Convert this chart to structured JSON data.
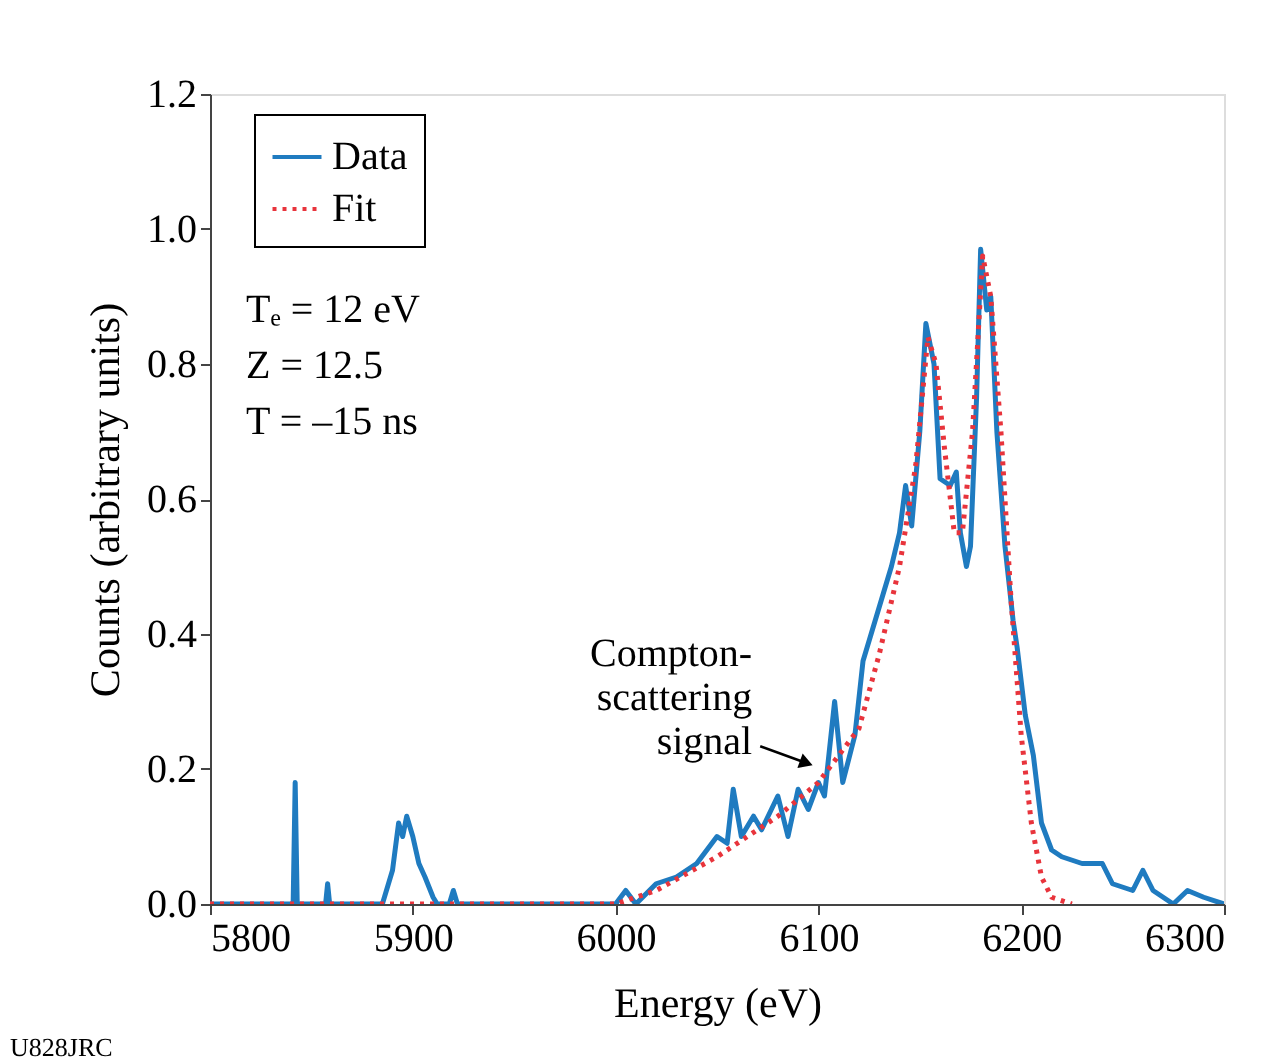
{
  "chart_data": {
    "type": "line",
    "xlabel": "Energy (eV)",
    "ylabel": "Counts (arbitrary units)",
    "xlim": [
      5800,
      6300
    ],
    "xticks": [
      5800,
      5900,
      6000,
      6100,
      6200,
      6300
    ],
    "ylim": [
      0,
      1.2
    ],
    "yticks": [
      {
        "value": 0,
        "label": "0.0"
      },
      0.2,
      0.4,
      0.6,
      0.8,
      {
        "value": 1,
        "label": "1.0"
      },
      1.2
    ],
    "grid": false,
    "legend": "top left",
    "marker": "none",
    "series": [
      {
        "name": "Data",
        "color": "#1f7bc0",
        "line_style": "solid",
        "x": [
          5800,
          5841,
          5842,
          5843,
          5857,
          5858,
          5859,
          5885,
          5890,
          5893,
          5895,
          5897,
          5900,
          5903,
          5906,
          5910,
          5912,
          5918,
          5920,
          5922,
          5960,
          6000,
          6005,
          6010,
          6020,
          6030,
          6040,
          6050,
          6055,
          6058,
          6062,
          6068,
          6072,
          6080,
          6085,
          6090,
          6095,
          6100,
          6103,
          6108,
          6112,
          6118,
          6122,
          6128,
          6132,
          6136,
          6140,
          6143,
          6146,
          6150,
          6153,
          6157,
          6160,
          6165,
          6168,
          6170,
          6173,
          6175,
          6178,
          6180,
          6183,
          6185,
          6188,
          6192,
          6196,
          6198,
          6202,
          6206,
          6210,
          6215,
          6220,
          6230,
          6240,
          6245,
          6255,
          6260,
          6265,
          6275,
          6282,
          6290,
          6300
        ],
        "values": [
          0,
          0,
          0.18,
          0,
          0,
          0.03,
          0,
          0,
          0.05,
          0.12,
          0.1,
          0.13,
          0.1,
          0.06,
          0.04,
          0.01,
          0,
          0,
          0.02,
          0,
          0,
          0,
          0.02,
          0,
          0.03,
          0.04,
          0.06,
          0.1,
          0.09,
          0.17,
          0.1,
          0.13,
          0.11,
          0.16,
          0.1,
          0.17,
          0.14,
          0.18,
          0.16,
          0.3,
          0.18,
          0.25,
          0.36,
          0.42,
          0.46,
          0.5,
          0.55,
          0.62,
          0.56,
          0.7,
          0.86,
          0.8,
          0.63,
          0.62,
          0.64,
          0.55,
          0.5,
          0.53,
          0.75,
          0.97,
          0.88,
          0.9,
          0.7,
          0.53,
          0.42,
          0.38,
          0.28,
          0.22,
          0.12,
          0.08,
          0.07,
          0.06,
          0.06,
          0.03,
          0.02,
          0.05,
          0.02,
          0,
          0.02,
          0.01,
          0
        ]
      },
      {
        "name": "Fit",
        "color": "#e8343c",
        "line_style": "dotted",
        "x": [
          5800,
          6000,
          6020,
          6050,
          6080,
          6100,
          6120,
          6130,
          6140,
          6148,
          6154,
          6158,
          6162,
          6167,
          6171,
          6176,
          6181,
          6185,
          6190,
          6195,
          6200,
          6205,
          6210,
          6215,
          6225
        ],
        "values": [
          0,
          0,
          0.02,
          0.07,
          0.13,
          0.18,
          0.26,
          0.37,
          0.5,
          0.65,
          0.84,
          0.8,
          0.68,
          0.55,
          0.55,
          0.7,
          0.96,
          0.9,
          0.7,
          0.45,
          0.25,
          0.12,
          0.04,
          0.01,
          0
        ]
      }
    ],
    "annotations": [
      {
        "text": "Compton-\nscattering\nsignal",
        "x": 6093,
        "y": 0.21
      },
      "Tₑ = 12 eV",
      "Z = 12.5",
      "T = –15 ns",
      "U828JRC"
    ]
  }
}
